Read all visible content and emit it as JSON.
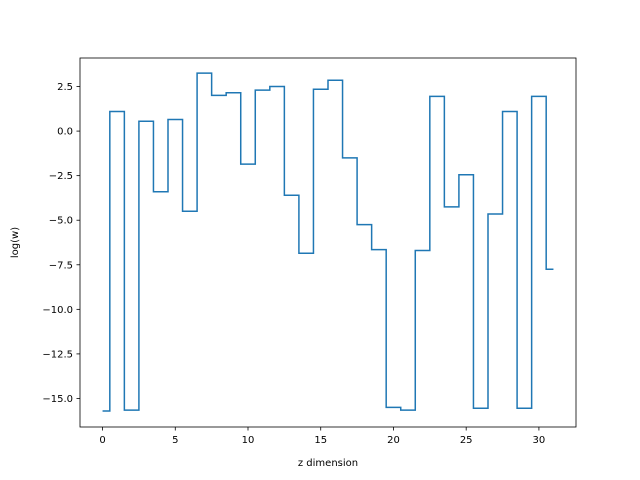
{
  "chart_data": {
    "type": "line",
    "drawstyle": "steps-mid",
    "xlabel": "z dimension",
    "ylabel": "log(w)",
    "xlim": [
      -1.55,
      32.55
    ],
    "ylim": [
      -16.6,
      4.1
    ],
    "xticks": [
      0,
      5,
      10,
      15,
      20,
      25,
      30
    ],
    "xtick_labels": [
      "0",
      "5",
      "10",
      "15",
      "20",
      "25",
      "30"
    ],
    "yticks": [
      2.5,
      0.0,
      -2.5,
      -5.0,
      -7.5,
      -10.0,
      -12.5,
      -15.0
    ],
    "ytick_labels": [
      "2.5",
      "0.0",
      "−2.5",
      "−5.0",
      "−7.5",
      "−10.0",
      "−12.5",
      "−15.0"
    ],
    "grid": false,
    "series": [
      {
        "color": "#1f77b4",
        "x": [
          0,
          1,
          2,
          3,
          4,
          5,
          6,
          7,
          8,
          9,
          10,
          11,
          12,
          13,
          14,
          15,
          16,
          17,
          18,
          19,
          20,
          21,
          22,
          23,
          24,
          25,
          26,
          27,
          28,
          29,
          30,
          31
        ],
        "y": [
          -15.7,
          1.1,
          -15.65,
          0.55,
          -3.4,
          0.65,
          -4.5,
          3.25,
          2.0,
          2.15,
          -1.85,
          2.3,
          2.5,
          -3.6,
          -6.85,
          2.35,
          2.85,
          -1.5,
          -5.25,
          -6.65,
          -15.5,
          -15.65,
          -6.7,
          1.95,
          -4.25,
          -2.45,
          -15.55,
          -4.65,
          1.1,
          -15.55,
          1.95,
          -7.75
        ]
      }
    ]
  }
}
